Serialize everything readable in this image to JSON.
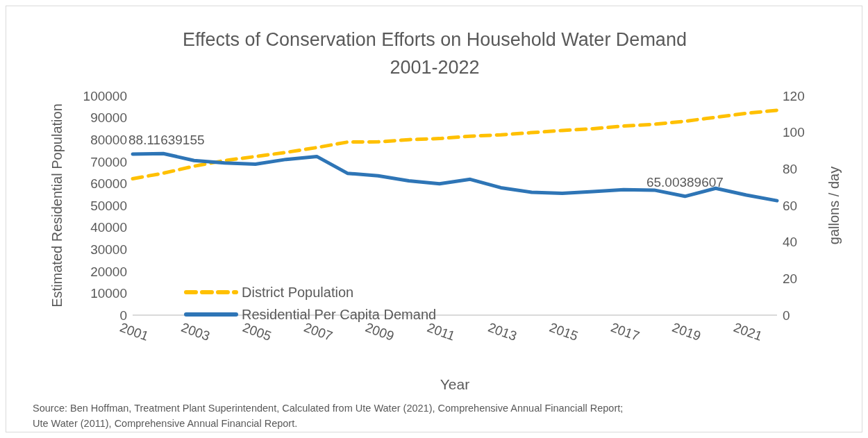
{
  "chart_data": {
    "type": "line",
    "title": "Effects of Conservation Efforts on Household Water Demand\n2001-2022",
    "xlabel": "Year",
    "ylabel": "Estimated Residential Population",
    "y2label": "gallons / day",
    "categories": [
      "2001",
      null,
      "2003",
      null,
      "2005",
      null,
      "2007",
      null,
      "2009",
      null,
      "2011",
      null,
      "2013",
      null,
      "2015",
      null,
      "2017",
      null,
      "2019",
      null,
      "2021",
      null
    ],
    "series": [
      {
        "name": "District Population",
        "color": "#ffc000",
        "line_style": "dashed",
        "values": [
          62200,
          64700,
          67900,
          70500,
          72300,
          74200,
          76400,
          78900,
          79000,
          80000,
          80500,
          81600,
          82200,
          83200,
          84200,
          85000,
          86200,
          87000,
          88400,
          90200,
          92000,
          93400
        ]
      },
      {
        "name": "Residential Per Capita Demand",
        "color": "#2e75b6",
        "axis": "y2",
        "line_style": "solid",
        "values": [
          88.11639155,
          88.4,
          84.6,
          83.3,
          82.6,
          85.2,
          86.8,
          77.6,
          76.2,
          73.5,
          71.9,
          74.3,
          69.7,
          67.2,
          66.6,
          67.6,
          68.6,
          68.4,
          65.00389607,
          69.4,
          65.7,
          62.6
        ],
        "value_labels": [
          "88.11639155",
          null,
          null,
          null,
          null,
          null,
          null,
          null,
          null,
          null,
          null,
          null,
          null,
          null,
          null,
          null,
          null,
          null,
          "65.00389607",
          null,
          null,
          null
        ]
      }
    ],
    "ylim": [
      0,
      100000
    ],
    "yticks": [
      0,
      10000,
      20000,
      30000,
      40000,
      50000,
      60000,
      70000,
      80000,
      90000,
      100000
    ],
    "y2lim": [
      0,
      120
    ],
    "y2ticks": [
      0,
      20,
      40,
      60,
      80,
      100,
      120
    ],
    "grid": false,
    "legend": "bottom left",
    "marker": "none",
    "annotations": [
      "Source: Ben Hoffman, Treatment Plant Superintendent, Calculated from Ute Water (2021), Comprehensive Annual Financiall Report;",
      "Ute Water (2011), Comprehensive Annual Financial Report."
    ]
  }
}
